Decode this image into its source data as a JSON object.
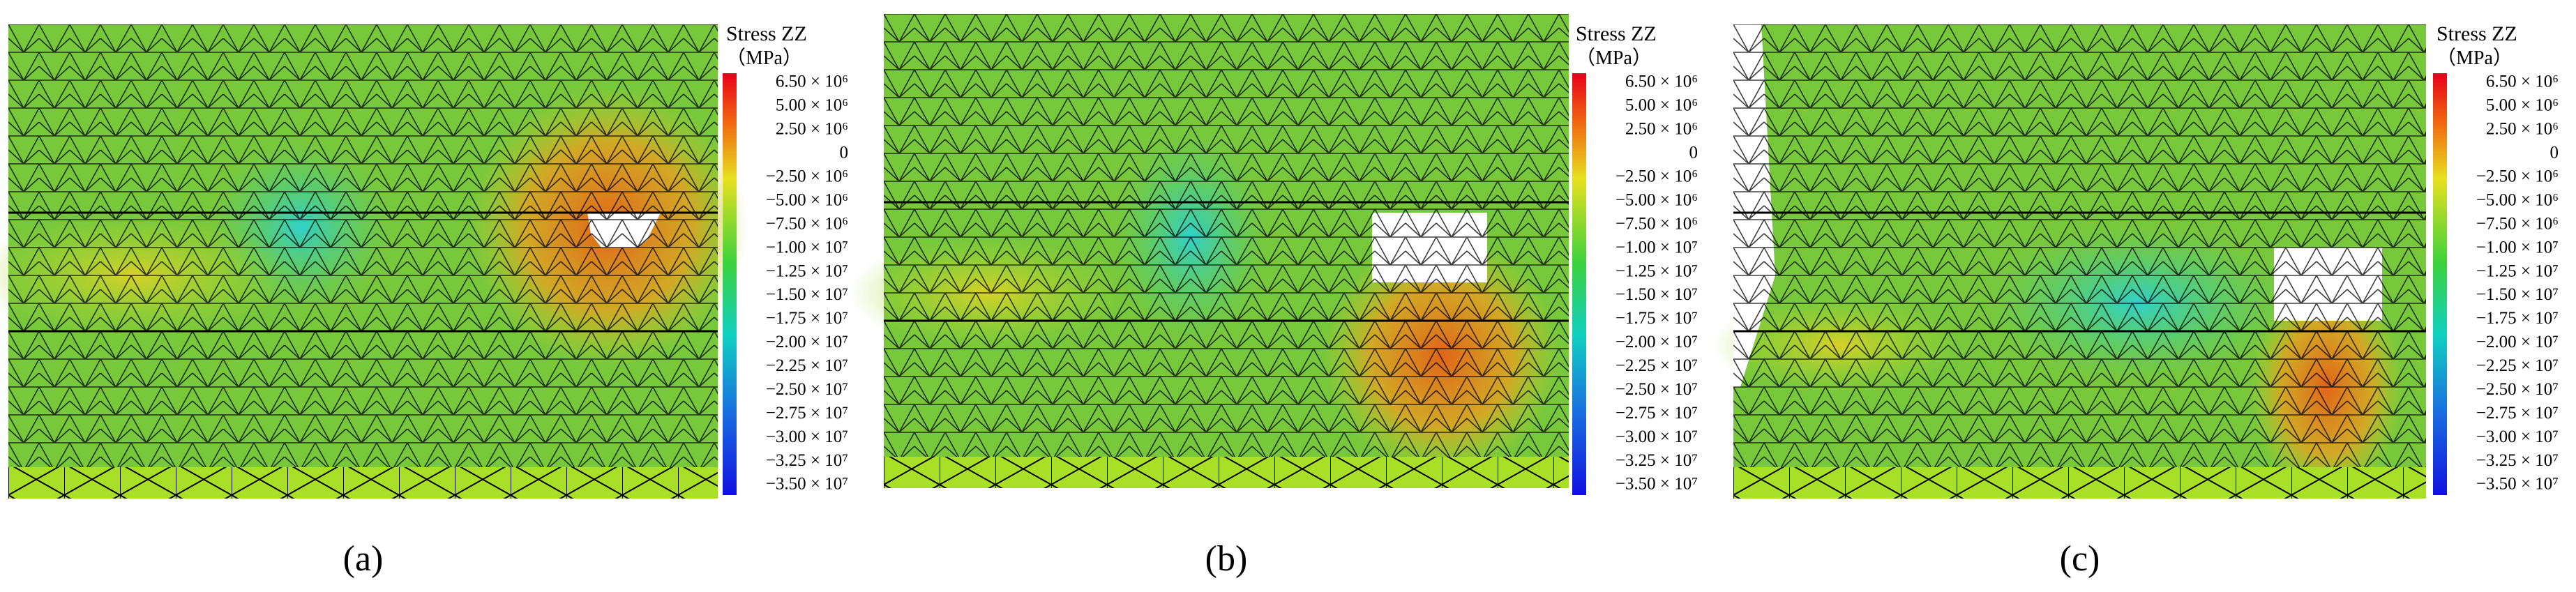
{
  "panels": [
    {
      "label": "(a)",
      "colorbar": {
        "title": "Stress ZZ",
        "unit": "（MPa）",
        "ticks": [
          "6.50 × 10⁶",
          "5.00 × 10⁶",
          "2.50 × 10⁶",
          "0",
          "−2.50 × 10⁶",
          "−5.00 × 10⁶",
          "−7.50 × 10⁶",
          "−1.00 × 10⁷",
          "−1.25 × 10⁷",
          "−1.50 × 10⁷",
          "−1.75 × 10⁷",
          "−2.00 × 10⁷",
          "−2.25 × 10⁷",
          "−2.50 × 10⁷",
          "−2.75 × 10⁷",
          "−3.00 × 10⁷",
          "−3.25 × 10⁷",
          "−3.50 × 10⁷"
        ]
      }
    },
    {
      "label": "(b)",
      "colorbar": {
        "title": "Stress ZZ",
        "unit": "（MPa）",
        "ticks": [
          "6.50 × 10⁶",
          "5.00 × 10⁶",
          "2.50 × 10⁶",
          "0",
          "−2.50 × 10⁶",
          "−5.00 × 10⁶",
          "−7.50 × 10⁶",
          "−1.00 × 10⁷",
          "−1.25 × 10⁷",
          "−1.50 × 10⁷",
          "−1.75 × 10⁷",
          "−2.00 × 10⁷",
          "−2.25 × 10⁷",
          "−2.50 × 10⁷",
          "−2.75 × 10⁷",
          "−3.00 × 10⁷",
          "−3.25 × 10⁷",
          "−3.50 × 10⁷"
        ]
      }
    },
    {
      "label": "(c)",
      "colorbar": {
        "title": "Stress ZZ",
        "unit": "（MPa）",
        "ticks": [
          "6.50 × 10⁶",
          "5.00 × 10⁶",
          "2.50 × 10⁶",
          "0",
          "−2.50 × 10⁶",
          "−5.00 × 10⁶",
          "−7.50 × 10⁶",
          "−1.00 × 10⁷",
          "−1.25 × 10⁷",
          "−1.50 × 10⁷",
          "−1.75 × 10⁷",
          "−2.00 × 10⁷",
          "−2.25 × 10⁷",
          "−2.50 × 10⁷",
          "−2.75 × 10⁷",
          "−3.00 × 10⁷",
          "−3.25 × 10⁷",
          "−3.50 × 10⁷"
        ]
      }
    }
  ]
}
